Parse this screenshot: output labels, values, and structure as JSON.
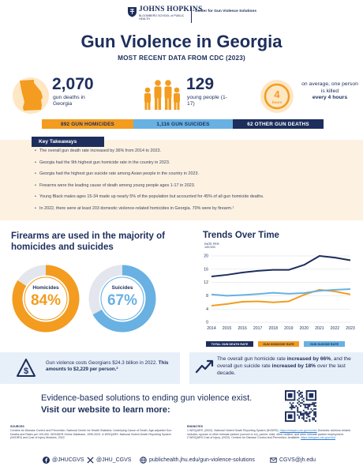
{
  "header": {
    "university_name": "JOHNS HOPKINS",
    "school_name": "BLOOMBERG SCHOOL of PUBLIC HEALTH",
    "center_name": "Center for Gun Violence Solutions"
  },
  "title": "Gun Violence in Georgia",
  "subtitle": "MOST RECENT DATA FROM CDC (2023)",
  "stats": {
    "deaths_value": "2,070",
    "deaths_label": "gun deaths in Georgia",
    "young_value": "129",
    "young_label": "young people (1-17)",
    "clock_value": "4",
    "clock_unit": "hours",
    "every_text": "on average, one person is killed",
    "every_bold": "every 4 hours"
  },
  "breakdown": {
    "homicides": "892 GUN HOMICIDES",
    "suicides": "1,116 GUN SUICIDES",
    "other": "62 OTHER GUN DEATHS"
  },
  "key_takeaways": {
    "heading": "Key Takeaways",
    "items": [
      "The overall gun death rate increased by 36% from 2014 to 2023.",
      "Georgia had the 9th highest gun homicide rate in the country in 2023.",
      "Georgia had the highest gun suicide rate among Asian people in the country in 2023.",
      "Firearms were the leading cause of death among young people ages 1-17 in 2023.",
      "Young Black males ages 15-34 made up nearly 5% of the population but accounted for 45% of all gun homicide deaths.",
      "In 2022, there were at least 203 domestic violence-related homicides in Georgia. 70% were by firearm.¹"
    ]
  },
  "firearms_share": {
    "heading": "Firearms are used in the majority of homicides and suicides",
    "homicides_label": "Homicides",
    "homicides_pct": "84%",
    "homicides_fraction": 0.84,
    "suicides_label": "Suicides",
    "suicides_pct": "67%",
    "suicides_fraction": 0.67
  },
  "trends": {
    "heading": "Trends Over Time",
    "rate_units": "RATE PER 100,000"
  },
  "chart_data": {
    "type": "line",
    "title": "Trends Over Time",
    "ylabel": "RATE PER 100,000",
    "x": [
      "2014",
      "2015",
      "2016",
      "2017",
      "2018",
      "2019",
      "2020",
      "2021",
      "2022",
      "2023"
    ],
    "ylim": [
      0,
      20
    ],
    "yticks": [
      "0",
      "4",
      "8",
      "12",
      "16",
      "20"
    ],
    "grid": true,
    "series": [
      {
        "name": "TOTAL GUN DEATH RATE",
        "color": "#1d2e5c",
        "values": [
          13.8,
          14.3,
          15.0,
          15.5,
          15.8,
          15.8,
          17.3,
          20.0,
          19.5,
          18.7
        ]
      },
      {
        "name": "GUN HOMICIDE RATE",
        "color": "#f39c1f",
        "values": [
          5.0,
          5.5,
          6.2,
          6.3,
          6.0,
          6.3,
          8.3,
          9.8,
          9.3,
          8.4
        ]
      },
      {
        "name": "GUN SUICIDE RATE",
        "color": "#68b1e2",
        "values": [
          8.4,
          8.0,
          8.2,
          8.5,
          8.9,
          8.6,
          8.8,
          9.5,
          9.8,
          10.0
        ]
      }
    ]
  },
  "cost": {
    "text": "Gun violence costs Georgians $24.3 billion in 2022.",
    "bold": "This amounts to $2,229 per person.²"
  },
  "trend_note": {
    "pre": "The overall gun homicide rate",
    "bold1": "increased by 66%",
    "mid": ", and the overall gun suicide rate",
    "bold2": "increased by 18%",
    "post": "over the last decade."
  },
  "cta": {
    "line1": "Evidence-based solutions to ending gun violence exist.",
    "line2": "Visit our website to learn more:"
  },
  "sources": {
    "heading": "SOURCES",
    "text": "Centers for Disease Control and Prevention. National Center for Health Statistics. Underlying Cause of Death. Age-adjusted Gun Deaths and Rates per 100,000. WONDER Online Database, 1999-2023. & WISQARS. National Violent Death Reporting System (NVDRS) and Cost of Injury Modules, 2022."
  },
  "endnotes": {
    "heading": "ENDNOTES",
    "text1": "1 WISQARS. (2022). National Violent Death Reporting System (NVDRS).",
    "link1": "https://wisqars.cdc.gov/nvdrs/",
    "text2": "Domestic violence-related includes: spouse or other intimate partner (current or ex), parent, child, other relative, and other intimate partner employment.",
    "text3": "2 WISQARS Cost of Injury. (2022). Centers for Disease Control and Prevention. Available:",
    "link2": "https://wisqars.cdc.gov/cost"
  },
  "footer": {
    "facebook": "@JHUCGVS",
    "x": "@JHU_CGVS",
    "website": "publichealth.jhu.edu/gun-violence-solutions",
    "email": "CGVS@jh.edu"
  }
}
